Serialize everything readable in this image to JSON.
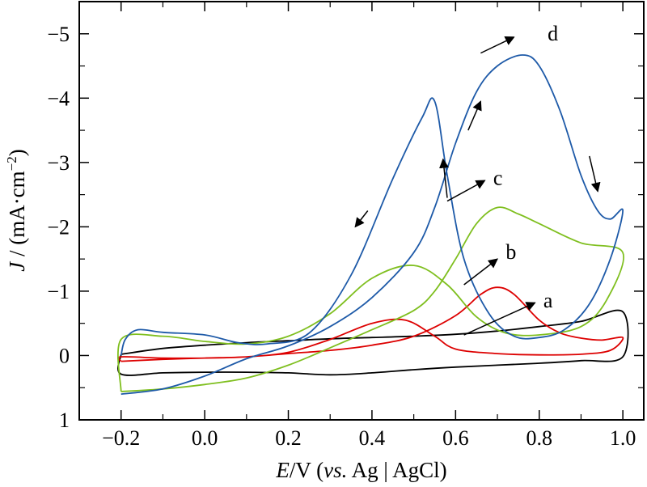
{
  "chart_data": {
    "type": "line",
    "title": "",
    "xlabel": {
      "italic": "E",
      "unit": "/V (",
      "ref_italic": "vs.",
      "ref": " Ag | AgCl)"
    },
    "ylabel": {
      "italic": "J",
      "unit": " / (mA·cm",
      "exp": "−2",
      "close": ")"
    },
    "xlim": [
      -0.3,
      1.05
    ],
    "ylim": [
      1,
      -5.5
    ],
    "y_inverted": true,
    "x_ticks": [
      -0.2,
      0.0,
      0.2,
      0.4,
      0.6,
      0.8,
      1.0
    ],
    "x_tick_labels": [
      "−0.2",
      "0.0",
      "0.2",
      "0.4",
      "0.6",
      "0.8",
      "1.0"
    ],
    "y_ticks": [
      -5,
      -4,
      -3,
      -2,
      -1,
      0,
      1
    ],
    "y_tick_labels": [
      "−5",
      "−4",
      "−3",
      "−2",
      "−1",
      "0",
      "1"
    ],
    "grid": false,
    "legend": "none",
    "series": [
      {
        "name": "a",
        "color": "#000000",
        "forward": [
          [
            -0.2,
            -0.02
          ],
          [
            -0.1,
            -0.11
          ],
          [
            0.0,
            -0.16
          ],
          [
            0.1,
            -0.2
          ],
          [
            0.2,
            -0.23
          ],
          [
            0.3,
            -0.26
          ],
          [
            0.4,
            -0.28
          ],
          [
            0.5,
            -0.3
          ],
          [
            0.6,
            -0.33
          ],
          [
            0.7,
            -0.38
          ],
          [
            0.8,
            -0.45
          ],
          [
            0.9,
            -0.53
          ],
          [
            1.0,
            -0.68
          ]
        ],
        "reverse": [
          [
            1.0,
            -0.68
          ],
          [
            1.0,
            0.02
          ],
          [
            0.9,
            0.08
          ],
          [
            0.8,
            0.12
          ],
          [
            0.7,
            0.15
          ],
          [
            0.6,
            0.18
          ],
          [
            0.5,
            0.22
          ],
          [
            0.4,
            0.27
          ],
          [
            0.3,
            0.3
          ],
          [
            0.2,
            0.27
          ],
          [
            0.1,
            0.26
          ],
          [
            0.0,
            0.26
          ],
          [
            -0.1,
            0.27
          ],
          [
            -0.2,
            0.29
          ],
          [
            -0.2,
            -0.02
          ]
        ]
      },
      {
        "name": "b",
        "color": "#dd0000",
        "forward": [
          [
            -0.2,
            0.09
          ],
          [
            -0.1,
            0.06
          ],
          [
            0.0,
            0.04
          ],
          [
            0.1,
            0.02
          ],
          [
            0.2,
            -0.03
          ],
          [
            0.3,
            -0.08
          ],
          [
            0.4,
            -0.16
          ],
          [
            0.5,
            -0.3
          ],
          [
            0.6,
            -0.62
          ],
          [
            0.66,
            -0.95
          ],
          [
            0.7,
            -1.06
          ],
          [
            0.74,
            -0.95
          ],
          [
            0.8,
            -0.55
          ],
          [
            0.85,
            -0.35
          ],
          [
            0.9,
            -0.27
          ],
          [
            0.95,
            -0.24
          ],
          [
            1.0,
            -0.28
          ]
        ],
        "reverse": [
          [
            1.0,
            -0.28
          ],
          [
            0.97,
            -0.08
          ],
          [
            0.9,
            -0.02
          ],
          [
            0.8,
            -0.01
          ],
          [
            0.7,
            -0.03
          ],
          [
            0.6,
            -0.1
          ],
          [
            0.55,
            -0.3
          ],
          [
            0.48,
            -0.55
          ],
          [
            0.4,
            -0.5
          ],
          [
            0.3,
            -0.25
          ],
          [
            0.2,
            -0.05
          ],
          [
            0.1,
            0.02
          ],
          [
            0.0,
            0.04
          ],
          [
            -0.1,
            0.04
          ],
          [
            -0.2,
            0.02
          ],
          [
            -0.2,
            0.09
          ]
        ]
      },
      {
        "name": "c",
        "color": "#7fbf1f",
        "forward": [
          [
            -0.2,
            0.56
          ],
          [
            -0.1,
            0.52
          ],
          [
            0.0,
            0.45
          ],
          [
            0.1,
            0.35
          ],
          [
            0.2,
            0.15
          ],
          [
            0.3,
            -0.12
          ],
          [
            0.4,
            -0.4
          ],
          [
            0.5,
            -0.7
          ],
          [
            0.55,
            -1.0
          ],
          [
            0.6,
            -1.5
          ],
          [
            0.65,
            -2.05
          ],
          [
            0.7,
            -2.3
          ],
          [
            0.75,
            -2.2
          ],
          [
            0.8,
            -2.05
          ],
          [
            0.9,
            -1.75
          ],
          [
            1.0,
            -1.6
          ]
        ],
        "reverse": [
          [
            1.0,
            -1.52
          ],
          [
            0.96,
            -0.85
          ],
          [
            0.9,
            -0.45
          ],
          [
            0.8,
            -0.32
          ],
          [
            0.72,
            -0.35
          ],
          [
            0.65,
            -0.6
          ],
          [
            0.58,
            -1.1
          ],
          [
            0.5,
            -1.4
          ],
          [
            0.4,
            -1.2
          ],
          [
            0.3,
            -0.65
          ],
          [
            0.2,
            -0.3
          ],
          [
            0.1,
            -0.18
          ],
          [
            0.0,
            -0.22
          ],
          [
            -0.1,
            -0.3
          ],
          [
            -0.2,
            -0.25
          ],
          [
            -0.2,
            0.56
          ]
        ]
      },
      {
        "name": "d",
        "color": "#1e5aa8",
        "forward": [
          [
            -0.2,
            0.6
          ],
          [
            -0.1,
            0.52
          ],
          [
            0.0,
            0.32
          ],
          [
            0.1,
            0.05
          ],
          [
            0.2,
            -0.15
          ],
          [
            0.3,
            -0.45
          ],
          [
            0.4,
            -0.9
          ],
          [
            0.5,
            -1.6
          ],
          [
            0.55,
            -2.3
          ],
          [
            0.6,
            -3.3
          ],
          [
            0.65,
            -4.1
          ],
          [
            0.7,
            -4.5
          ],
          [
            0.76,
            -4.67
          ],
          [
            0.8,
            -4.5
          ],
          [
            0.85,
            -3.8
          ],
          [
            0.9,
            -2.8
          ],
          [
            0.94,
            -2.25
          ],
          [
            0.97,
            -2.12
          ],
          [
            1.0,
            -2.25
          ]
        ],
        "reverse": [
          [
            1.0,
            -2.25
          ],
          [
            0.97,
            -1.5
          ],
          [
            0.92,
            -0.8
          ],
          [
            0.86,
            -0.4
          ],
          [
            0.8,
            -0.28
          ],
          [
            0.74,
            -0.3
          ],
          [
            0.68,
            -0.65
          ],
          [
            0.62,
            -1.5
          ],
          [
            0.58,
            -2.8
          ],
          [
            0.55,
            -3.95
          ],
          [
            0.52,
            -3.7
          ],
          [
            0.45,
            -2.75
          ],
          [
            0.35,
            -1.25
          ],
          [
            0.25,
            -0.35
          ],
          [
            0.15,
            -0.18
          ],
          [
            0.08,
            -0.2
          ],
          [
            0.0,
            -0.32
          ],
          [
            -0.1,
            -0.36
          ],
          [
            -0.16,
            -0.4
          ],
          [
            -0.19,
            -0.25
          ],
          [
            -0.2,
            0.0
          ]
        ]
      }
    ],
    "annotations": [
      {
        "label": "a",
        "x": 0.81,
        "y": -0.85,
        "arrow_from": [
          0.62,
          -0.32
        ],
        "arrow_to": [
          0.79,
          -0.82
        ]
      },
      {
        "label": "b",
        "x": 0.72,
        "y": -1.6,
        "arrow_from": [
          0.62,
          -1.1
        ],
        "arrow_to": [
          0.7,
          -1.5
        ]
      },
      {
        "label": "c",
        "x": 0.69,
        "y": -2.75,
        "arrow_from": [
          0.58,
          -2.4
        ],
        "arrow_to": [
          0.67,
          -2.72
        ]
      },
      {
        "label": "d",
        "x": 0.82,
        "y": -5.0,
        "arrow_from": [
          0.66,
          -4.7
        ],
        "arrow_to": [
          0.74,
          -4.95
        ]
      }
    ],
    "direction_arrows": [
      {
        "from": [
          0.39,
          -2.25
        ],
        "to": [
          0.36,
          -2.0
        ]
      },
      {
        "from": [
          0.58,
          -2.45
        ],
        "to": [
          0.57,
          -3.05
        ]
      },
      {
        "from": [
          0.63,
          -3.5
        ],
        "to": [
          0.66,
          -3.95
        ]
      },
      {
        "from": [
          0.92,
          -3.1
        ],
        "to": [
          0.94,
          -2.55
        ]
      }
    ]
  }
}
